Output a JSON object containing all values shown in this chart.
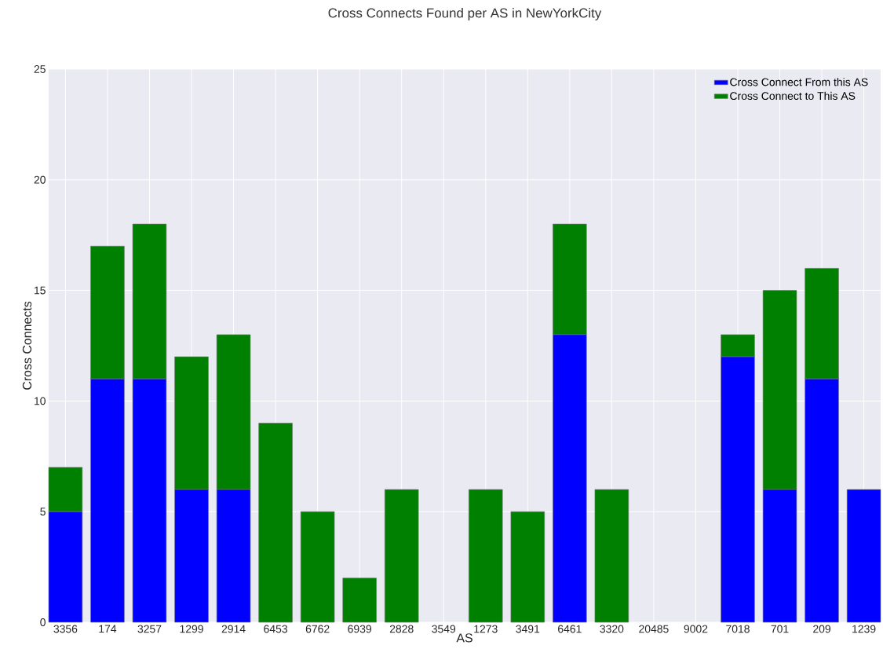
{
  "chart_data": {
    "type": "bar",
    "title": "Cross Connects Found per AS in NewYorkCity",
    "xlabel": "AS",
    "ylabel": "Cross Connects",
    "categories": [
      "3356",
      "174",
      "3257",
      "1299",
      "2914",
      "6453",
      "6762",
      "6939",
      "2828",
      "3549",
      "1273",
      "3491",
      "6461",
      "3320",
      "20485",
      "9002",
      "7018",
      "701",
      "209",
      "1239"
    ],
    "series": [
      {
        "name": "Cross Connect From this AS",
        "color": "#0000ff",
        "values": [
          5,
          11,
          11,
          6,
          6,
          0,
          0,
          0,
          0,
          0,
          0,
          0,
          13,
          0,
          0,
          0,
          12,
          6,
          11,
          6
        ]
      },
      {
        "name": "Cross Connect to This AS",
        "color": "#008000",
        "values": [
          2,
          6,
          7,
          6,
          7,
          9,
          5,
          2,
          6,
          0,
          6,
          5,
          5,
          6,
          0,
          0,
          1,
          9,
          5,
          0
        ]
      }
    ],
    "stacked": true,
    "ylim": [
      0,
      25
    ],
    "yticks": [
      0,
      5,
      10,
      15,
      20,
      25
    ],
    "grid": true,
    "legend": "top right"
  }
}
